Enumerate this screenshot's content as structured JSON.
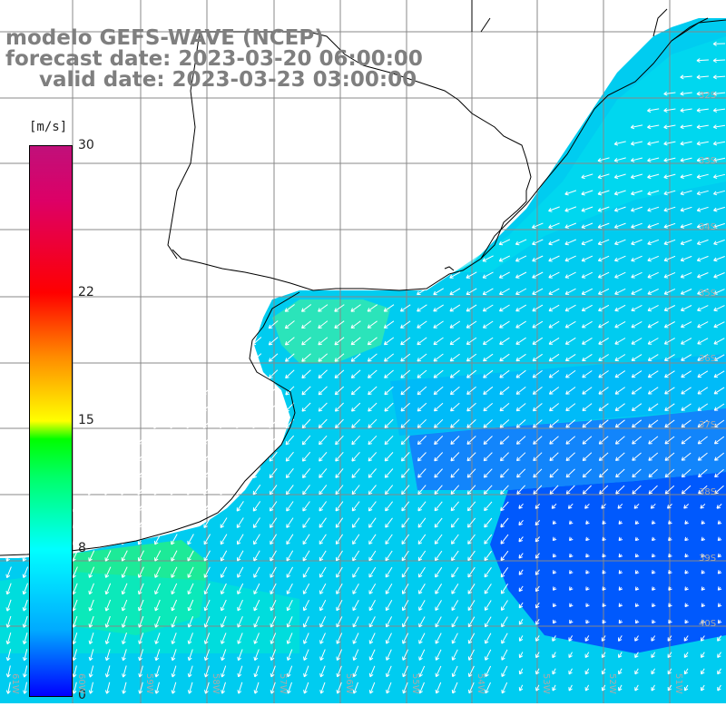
{
  "title": {
    "line1": "modelo GEFS-WAVE (NCEP)",
    "line2": "forecast date: 2023-03-20 06:00:00",
    "line3": "valid date: 2023-03-23 03:00:00"
  },
  "colorbar": {
    "unit": "[m/s]",
    "ticks": [
      {
        "label": "30",
        "value": 30
      },
      {
        "label": "22",
        "value": 22
      },
      {
        "label": "15",
        "value": 15
      },
      {
        "label": "8",
        "value": 8
      },
      {
        "label": "0",
        "value": 0
      }
    ],
    "colors": [
      "#0000ff",
      "#00ffff",
      "#00ff00",
      "#ffff00",
      "#ff0000",
      "#c0107a"
    ]
  },
  "map": {
    "grid_color": "#888888",
    "arrow_color": "#ffffff",
    "land_color": "#ffffff",
    "lat_labels": [
      "32S",
      "33S",
      "34S",
      "35S",
      "36S",
      "37S",
      "38S",
      "39S",
      "40S"
    ],
    "lon_labels": [
      "61W",
      "60W",
      "59W",
      "58W",
      "57W",
      "56W",
      "55W",
      "54W",
      "53W",
      "52W",
      "51W"
    ]
  }
}
